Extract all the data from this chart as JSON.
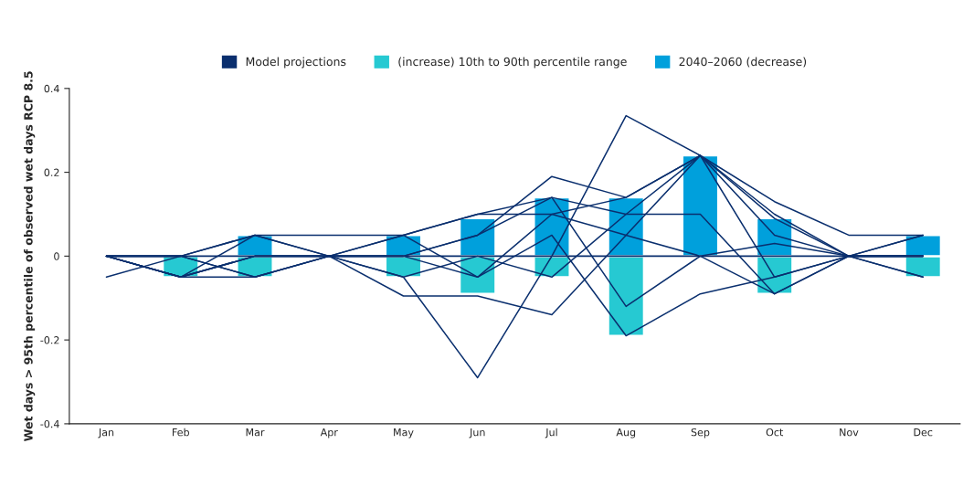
{
  "chart_data": {
    "type": "bar",
    "ylabel": "Wet days > 95th percentile of observed wet days RCP 8.5",
    "categories": [
      "Jan",
      "Feb",
      "Mar",
      "Apr",
      "May",
      "Jun",
      "Jul",
      "Aug",
      "Sep",
      "Oct",
      "Nov",
      "Dec"
    ],
    "series": [
      {
        "name": "Model projections",
        "type": "line",
        "color": "#0a2f6e",
        "values": [
          0,
          -0.05,
          0.05,
          0,
          0.05,
          0.1,
          0.14,
          0.1,
          0.24,
          0.09,
          0,
          0.05
        ]
      },
      {
        "type": "line",
        "color": "#0a2f6e",
        "values": [
          -0.05,
          0,
          -0.05,
          0,
          -0.05,
          -0.29,
          0,
          0.335,
          0.24,
          0.1,
          0,
          -0.05
        ]
      },
      {
        "type": "line",
        "color": "#0a2f6e",
        "values": [
          0,
          -0.05,
          0,
          0,
          0,
          0.05,
          0.19,
          0.14,
          0.24,
          0.05,
          0,
          0
        ]
      },
      {
        "type": "line",
        "color": "#0a2f6e",
        "values": [
          0,
          0,
          0.05,
          0.05,
          0.05,
          0.1,
          0.1,
          0.14,
          0.24,
          0.13,
          0.05,
          0.05
        ]
      },
      {
        "type": "line",
        "color": "#0a2f6e",
        "values": [
          0,
          -0.05,
          -0.05,
          0,
          -0.095,
          -0.095,
          -0.14,
          0.05,
          0.24,
          -0.05,
          0,
          0
        ]
      },
      {
        "type": "line",
        "color": "#0a2f6e",
        "values": [
          0,
          0,
          0.05,
          0,
          0,
          -0.05,
          0.05,
          -0.19,
          -0.09,
          -0.05,
          0,
          0
        ]
      },
      {
        "type": "line",
        "color": "#0a2f6e",
        "values": [
          0,
          -0.05,
          0,
          0,
          -0.05,
          0,
          -0.05,
          0.1,
          0.1,
          -0.09,
          0,
          -0.05
        ]
      },
      {
        "type": "line",
        "color": "#0a2f6e",
        "values": [
          0,
          0,
          -0.05,
          0,
          0,
          0.05,
          0.14,
          -0.12,
          0,
          -0.09,
          0,
          0
        ]
      },
      {
        "type": "line",
        "color": "#0a2f6e",
        "values": [
          0,
          0,
          0,
          0,
          0,
          0,
          0,
          0,
          0,
          0,
          0,
          0
        ]
      },
      {
        "type": "line",
        "color": "#0a2f6e",
        "values": [
          0,
          -0.05,
          0,
          0,
          0.05,
          -0.05,
          0.1,
          0.05,
          0,
          0.03,
          0,
          0.05
        ]
      },
      {
        "name": "(increase) 10th to 90th percentile range",
        "color": "#26c9d2",
        "values": [
          null,
          -0.05,
          -0.05,
          null,
          -0.05,
          -0.09,
          -0.05,
          -0.19,
          null,
          -0.09,
          null,
          -0.05
        ]
      },
      {
        "name": "2040–2060 (decrease)",
        "color": "#00a0dc",
        "values": [
          null,
          null,
          0.05,
          null,
          0.05,
          0.09,
          0.14,
          0.14,
          0.24,
          0.09,
          null,
          0.05
        ]
      }
    ],
    "ylim": [
      -0.4,
      0.4
    ],
    "yticks": [
      -0.4,
      -0.2,
      0,
      0.2,
      0.4
    ],
    "stacked": true,
    "grid": false,
    "legend": "top",
    "marker": "none",
    "line_style": "solid"
  }
}
